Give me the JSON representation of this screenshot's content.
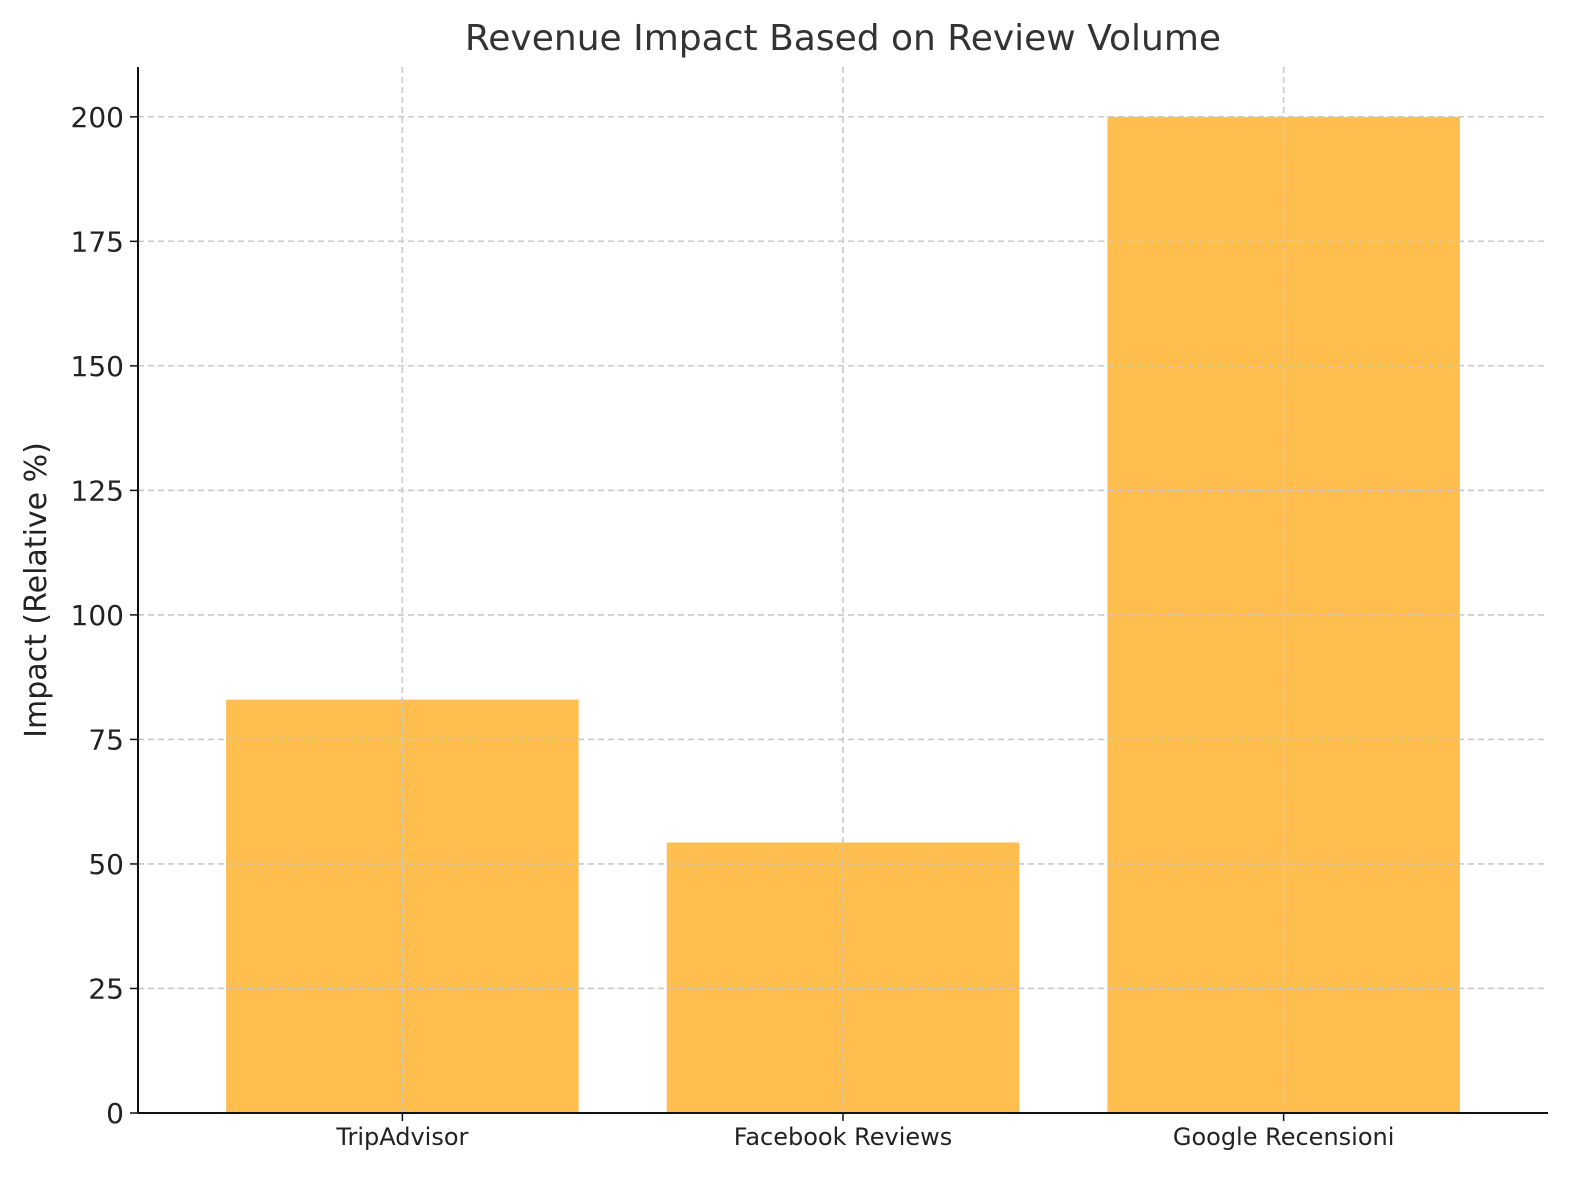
{
  "chart_data": {
    "type": "bar",
    "title": "Revenue Impact Based on Review Volume",
    "xlabel": "",
    "ylabel": "Impact (Relative %)",
    "categories": [
      "TripAdvisor",
      "Facebook Reviews",
      "Google Recensioni"
    ],
    "values": [
      83,
      54.3,
      200
    ],
    "ylim": [
      0,
      210
    ],
    "yticks": [
      "0",
      "25",
      "50",
      "75",
      "100",
      "125",
      "150",
      "175",
      "200"
    ],
    "grid": true,
    "bar_color": "#ffbe4d"
  }
}
